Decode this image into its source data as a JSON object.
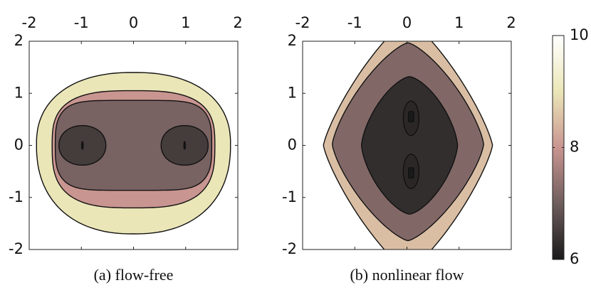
{
  "chart_data": [
    {
      "type": "contour",
      "caption": "(a) flow-free",
      "xlim": [
        -2,
        2
      ],
      "ylim": [
        -2,
        2
      ],
      "xticks": [
        -2,
        -1,
        0,
        1,
        2
      ],
      "yticks": [
        -2,
        -1,
        0,
        1,
        2
      ],
      "levels": [
        9,
        8,
        7.1,
        6.5,
        6
      ]
    },
    {
      "type": "contour",
      "caption": "(b) nonlinear flow",
      "xlim": [
        -2,
        2
      ],
      "ylim": [
        -2,
        2
      ],
      "xticks": [
        -2,
        -1,
        0,
        1,
        2
      ],
      "yticks": [
        -2,
        -1,
        0,
        1,
        2
      ],
      "levels": [
        8.5,
        7.2,
        6.3,
        6.2,
        6
      ]
    },
    {
      "type": "colorbar",
      "ylim": [
        6,
        10
      ],
      "yticks": [
        6,
        8,
        10
      ],
      "colormap": [
        {
          "value": 6,
          "color": "#1a1a1a"
        },
        {
          "value": 7,
          "color": "#6f5d5d"
        },
        {
          "value": 8,
          "color": "#c99590"
        },
        {
          "value": 9,
          "color": "#ebe6b8"
        },
        {
          "value": 10,
          "color": "#ffffff"
        }
      ]
    }
  ]
}
